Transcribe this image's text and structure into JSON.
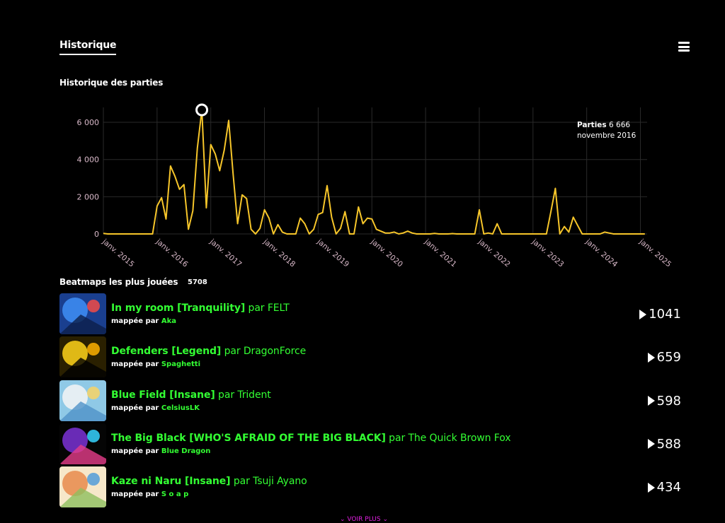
{
  "header": {
    "title": "Historique",
    "menu_icon": "hamburger-icon"
  },
  "history": {
    "title": "Historique des parties",
    "tooltip": {
      "label": "Parties",
      "value": "6 666",
      "date": "novembre 2016"
    }
  },
  "chart_data": {
    "type": "line",
    "title": "Historique des parties",
    "color": "#f7c62a",
    "ylim": [
      0,
      6800
    ],
    "yticks": [
      0,
      2000,
      4000,
      6000
    ],
    "ytick_labels": [
      "0",
      "2 000",
      "4 000",
      "6 000"
    ],
    "xlim": [
      0,
      121.5
    ],
    "xticks": [
      0,
      12,
      24,
      36,
      48,
      60,
      72,
      84,
      96,
      108,
      120
    ],
    "xtick_labels": [
      "janv. 2015",
      "janv. 2016",
      "janv. 2017",
      "janv. 2018",
      "janv. 2019",
      "janv. 2020",
      "janv. 2021",
      "janv. 2022",
      "janv. 2023",
      "janv. 2024",
      "janv. 2025"
    ],
    "grid": true,
    "highlight": {
      "x": 22,
      "y": 6666
    },
    "series": [
      {
        "points": [
          [
            0,
            30
          ],
          [
            1,
            0
          ],
          [
            2,
            0
          ],
          [
            3,
            0
          ],
          [
            4,
            0
          ],
          [
            5,
            0
          ],
          [
            6,
            0
          ],
          [
            7,
            0
          ],
          [
            8,
            0
          ],
          [
            9,
            0
          ],
          [
            10,
            0
          ],
          [
            11,
            0
          ],
          [
            12,
            1500
          ],
          [
            13,
            1950
          ],
          [
            14,
            800
          ],
          [
            15,
            3650
          ],
          [
            16,
            3100
          ],
          [
            17,
            2400
          ],
          [
            18,
            2650
          ],
          [
            19,
            250
          ],
          [
            20,
            1250
          ],
          [
            21,
            4600
          ],
          [
            22,
            6666
          ],
          [
            23,
            1400
          ],
          [
            24,
            4800
          ],
          [
            25,
            4300
          ],
          [
            26,
            3400
          ],
          [
            27,
            4500
          ],
          [
            28,
            6100
          ],
          [
            29,
            3200
          ],
          [
            30,
            550
          ],
          [
            31,
            2100
          ],
          [
            32,
            1900
          ],
          [
            33,
            250
          ],
          [
            34,
            0
          ],
          [
            35,
            300
          ],
          [
            36,
            1300
          ],
          [
            37,
            850
          ],
          [
            38,
            0
          ],
          [
            39,
            500
          ],
          [
            40,
            100
          ],
          [
            41,
            0
          ],
          [
            42,
            0
          ],
          [
            43,
            0
          ],
          [
            44,
            850
          ],
          [
            45,
            550
          ],
          [
            46,
            0
          ],
          [
            47,
            250
          ],
          [
            48,
            1050
          ],
          [
            49,
            1150
          ],
          [
            50,
            2600
          ],
          [
            51,
            900
          ],
          [
            52,
            0
          ],
          [
            53,
            300
          ],
          [
            54,
            1200
          ],
          [
            55,
            0
          ],
          [
            56,
            0
          ],
          [
            57,
            1450
          ],
          [
            58,
            550
          ],
          [
            59,
            850
          ],
          [
            60,
            800
          ],
          [
            61,
            250
          ],
          [
            62,
            150
          ],
          [
            63,
            50
          ],
          [
            64,
            50
          ],
          [
            65,
            100
          ],
          [
            66,
            0
          ],
          [
            67,
            50
          ],
          [
            68,
            150
          ],
          [
            69,
            50
          ],
          [
            70,
            0
          ],
          [
            71,
            0
          ],
          [
            72,
            0
          ],
          [
            73,
            0
          ],
          [
            74,
            30
          ],
          [
            75,
            0
          ],
          [
            76,
            0
          ],
          [
            77,
            0
          ],
          [
            78,
            20
          ],
          [
            79,
            0
          ],
          [
            80,
            0
          ],
          [
            81,
            0
          ],
          [
            82,
            0
          ],
          [
            83,
            0
          ],
          [
            84,
            1300
          ],
          [
            85,
            0
          ],
          [
            86,
            50
          ],
          [
            87,
            0
          ],
          [
            88,
            550
          ],
          [
            89,
            0
          ],
          [
            90,
            0
          ],
          [
            91,
            0
          ],
          [
            92,
            0
          ],
          [
            93,
            0
          ],
          [
            94,
            0
          ],
          [
            95,
            0
          ],
          [
            96,
            0
          ],
          [
            97,
            0
          ],
          [
            98,
            0
          ],
          [
            99,
            0
          ],
          [
            100,
            1200
          ],
          [
            101,
            2450
          ],
          [
            102,
            0
          ],
          [
            103,
            400
          ],
          [
            104,
            100
          ],
          [
            105,
            900
          ],
          [
            106,
            450
          ],
          [
            107,
            0
          ],
          [
            108,
            0
          ],
          [
            109,
            0
          ],
          [
            110,
            0
          ],
          [
            111,
            0
          ],
          [
            112,
            100
          ],
          [
            113,
            50
          ],
          [
            114,
            0
          ],
          [
            115,
            0
          ],
          [
            116,
            0
          ],
          [
            117,
            0
          ],
          [
            118,
            0
          ],
          [
            119,
            0
          ],
          [
            120,
            0
          ],
          [
            121,
            0
          ]
        ]
      }
    ]
  },
  "beatmaps": {
    "title": "Beatmaps les plus jouées",
    "count": "5708",
    "items": [
      {
        "title": "In my room [Tranquility]",
        "by": "par",
        "artist": "FELT",
        "mapped_by": "mappée par",
        "mapper": "Aka",
        "plays": "1041",
        "cover_colors": [
          "#1a3f8f",
          "#3f8ff7",
          "#0d1f4a",
          "#e64a4a"
        ]
      },
      {
        "title": "Defenders [Legend]",
        "by": "par",
        "artist": "DragonForce",
        "mapped_by": "mappée par",
        "mapper": "Spaghetti",
        "plays": "659",
        "cover_colors": [
          "#2a2000",
          "#ffd51a",
          "#000000",
          "#f2a800"
        ]
      },
      {
        "title": "Blue Field [Insane]",
        "by": "par",
        "artist": "Trident",
        "mapped_by": "mappée par",
        "mapper": "CelsiusLK",
        "plays": "598",
        "cover_colors": [
          "#8fc9e6",
          "#f5f5f5",
          "#4f92c8",
          "#f2d36b"
        ]
      },
      {
        "title": "The Big Black [WHO'S AFRAID OF THE BIG BLACK]",
        "by": "par",
        "artist": "The Quick Brown Fox",
        "mapped_by": "mappée par",
        "mapper": "Blue Dragon",
        "plays": "588",
        "cover_colors": [
          "#050505",
          "#7b33d6",
          "#e63c8a",
          "#33c9f2"
        ]
      },
      {
        "title": "Kaze ni Naru [Insane]",
        "by": "par",
        "artist": "Tsuji Ayano",
        "mapped_by": "mappée par",
        "mapper": "S o a p",
        "plays": "434",
        "cover_colors": [
          "#f6e7c9",
          "#e88a4c",
          "#8fbf5f",
          "#5aa0d8"
        ]
      }
    ]
  },
  "more": {
    "label": "VOIR PLUS"
  }
}
